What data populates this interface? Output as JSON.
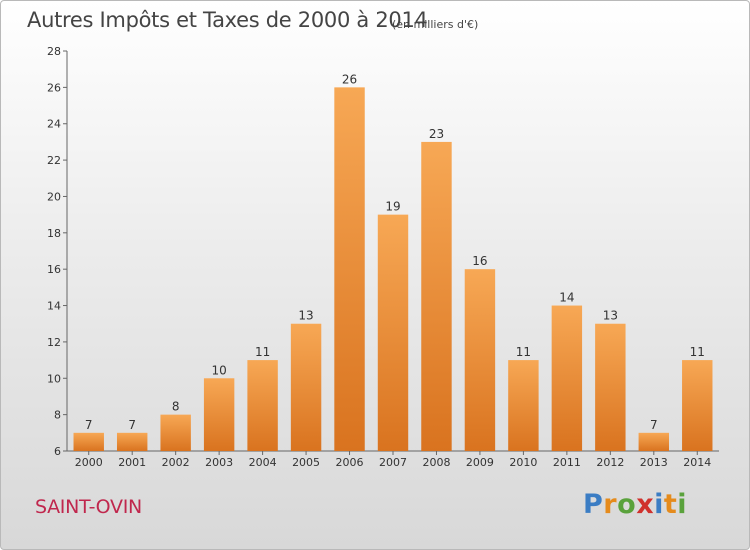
{
  "title": "Autres Impôts et Taxes de 2000 à 2014",
  "subtitle": "(en milliers d'€)",
  "commune": "SAINT-OVIN",
  "logo": {
    "letters": [
      "P",
      "r",
      "o",
      "x",
      "i",
      "t",
      "i"
    ],
    "colors": [
      "#3b7dc4",
      "#e58b1c",
      "#5aa23c",
      "#d0312d",
      "#3b7dc4",
      "#e58b1c",
      "#5aa23c"
    ]
  },
  "colors": {
    "bar_top": "#f7a855",
    "bar_bottom": "#d9731f",
    "axis": "#666666"
  },
  "chart_data": {
    "type": "bar",
    "title": "Autres Impôts et Taxes de 2000 à 2014",
    "subtitle": "(en milliers d'€)",
    "categories": [
      "2000",
      "2001",
      "2002",
      "2003",
      "2004",
      "2005",
      "2006",
      "2007",
      "2008",
      "2009",
      "2010",
      "2011",
      "2012",
      "2013",
      "2014"
    ],
    "values": [
      7,
      7,
      8,
      10,
      11,
      13,
      26,
      19,
      23,
      16,
      11,
      14,
      13,
      7,
      11
    ],
    "value_labels": [
      "7",
      "7",
      "8",
      "10",
      "11",
      "13",
      "26",
      "19",
      "23",
      "16",
      "11",
      "14",
      "13",
      "7",
      "11"
    ],
    "ylim": [
      6,
      28
    ],
    "yticks": [
      6,
      8,
      10,
      12,
      14,
      16,
      18,
      20,
      22,
      24,
      26,
      28
    ],
    "ytick_labels": [
      "6",
      "8",
      "10",
      "12",
      "14",
      "16",
      "18",
      "20",
      "22",
      "24",
      "26",
      "28"
    ],
    "grid": false,
    "xlabel": "",
    "ylabel": ""
  }
}
